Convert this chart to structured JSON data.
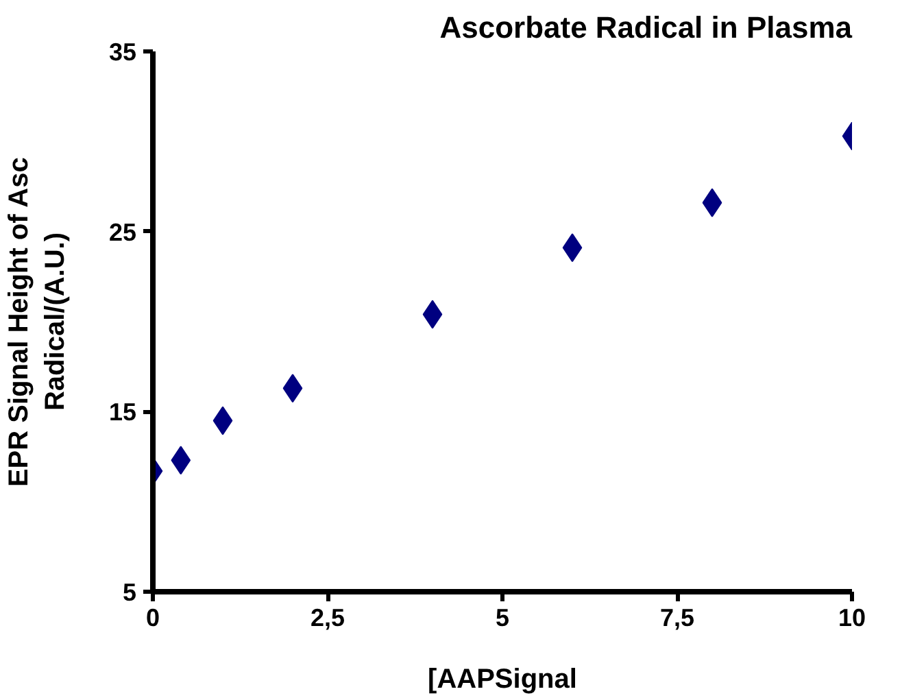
{
  "chart_data": {
    "type": "scatter",
    "title": "Ascorbate Radical in Plasma",
    "xlabel": "[AAPSignal",
    "ylabel": "EPR Signal Height of Asc\nRadical/(A.U.)",
    "x": [
      0,
      0.4,
      1,
      2,
      4,
      6,
      8,
      10
    ],
    "series": [
      {
        "color": "#000080",
        "values": [
          11.7,
          12.3,
          14.5,
          16.3,
          20.4,
          24.1,
          26.6,
          30.3
        ]
      }
    ],
    "xlim": [
      0,
      10
    ],
    "ylim": [
      5,
      35
    ],
    "xticks": [
      0,
      {
        "value": 2.5,
        "label": "2,5"
      },
      5,
      {
        "value": 7.5,
        "label": "7,5"
      },
      10
    ],
    "yticks": [
      5,
      15,
      25,
      35
    ],
    "marker": "diamond",
    "grid": false
  }
}
